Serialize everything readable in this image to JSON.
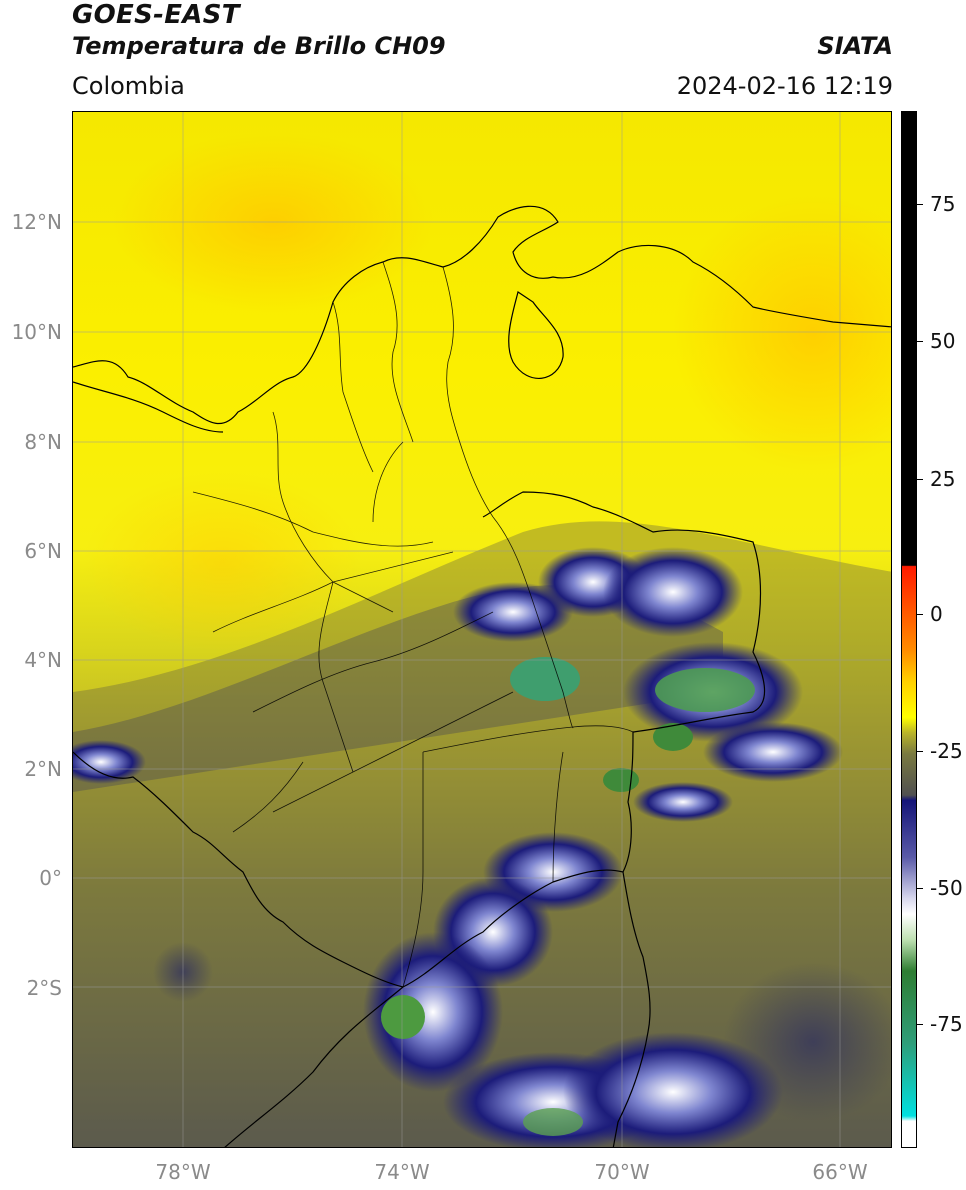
{
  "header": {
    "satellite": "GOES-EAST",
    "product": "Temperatura de Brillo CH09",
    "organization": "SIATA",
    "region": "Colombia",
    "datetime": "2024-02-16 12:19"
  },
  "map": {
    "lat_labels": [
      "12°N",
      "10°N",
      "8°N",
      "6°N",
      "4°N",
      "2°N",
      "0°",
      "2°S"
    ],
    "lon_labels": [
      "78°W",
      "74°W",
      "70°W",
      "66°W"
    ],
    "extent": {
      "lon_min": -80,
      "lon_max": -65,
      "lat_min": -5,
      "lat_max": 14
    },
    "gridlines": true
  },
  "colorbar": {
    "ticks": [
      "75",
      "50",
      "25",
      "0",
      "-25",
      "-50",
      "-75"
    ],
    "tick_values": [
      75,
      50,
      25,
      0,
      -25,
      -50,
      -75
    ],
    "range": [
      -95,
      90
    ],
    "colors": {
      "black": "#000000",
      "red": "#ff1a00",
      "orange": "#ff8c00",
      "yellow": "#ffff00",
      "olive": "#8c8c3c",
      "gray": "#505050",
      "navy": "#141478",
      "white": "#ffffff",
      "green": "#2e7d32",
      "cyan": "#00e0e0"
    }
  }
}
